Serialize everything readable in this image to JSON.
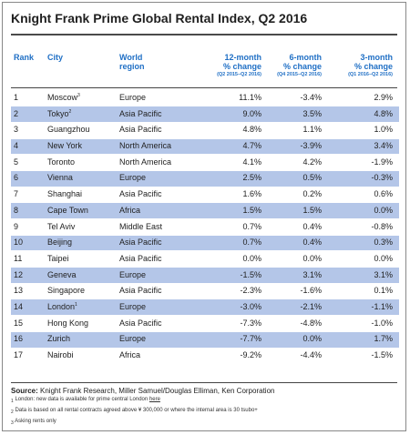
{
  "title": "Knight Frank Prime Global Rental Index, Q2 2016",
  "columns": {
    "rank": "Rank",
    "city": "City",
    "region_line1": "World",
    "region_line2": "region",
    "m12_line1": "12-month",
    "m12_line2": "% change",
    "m12_sub": "(Q2 2015–Q2 2016)",
    "m6_line1": "6-month",
    "m6_line2": "% change",
    "m6_sub": "(Q4 2015–Q2 2016)",
    "m3_line1": "3-month",
    "m3_line2": "% change",
    "m3_sub": "(Q1 2016–Q2 2016)"
  },
  "rows": [
    {
      "rank": "1",
      "city": "Moscow",
      "mark": "3",
      "region": "Europe",
      "m12": "11.1%",
      "m6": "-3.4%",
      "m3": "2.9%"
    },
    {
      "rank": "2",
      "city": "Tokyo",
      "mark": "2",
      "region": "Asia Pacific",
      "m12": "9.0%",
      "m6": "3.5%",
      "m3": "4.8%"
    },
    {
      "rank": "3",
      "city": "Guangzhou",
      "mark": "",
      "region": "Asia Pacific",
      "m12": "4.8%",
      "m6": "1.1%",
      "m3": "1.0%"
    },
    {
      "rank": "4",
      "city": "New York",
      "mark": "",
      "region": "North America",
      "m12": "4.7%",
      "m6": "-3.9%",
      "m3": "3.4%"
    },
    {
      "rank": "5",
      "city": "Toronto",
      "mark": "",
      "region": "North America",
      "m12": "4.1%",
      "m6": "4.2%",
      "m3": "-1.9%"
    },
    {
      "rank": "6",
      "city": "Vienna",
      "mark": "",
      "region": "Europe",
      "m12": "2.5%",
      "m6": "0.5%",
      "m3": "-0.3%"
    },
    {
      "rank": "7",
      "city": "Shanghai",
      "mark": "",
      "region": "Asia Pacific",
      "m12": "1.6%",
      "m6": "0.2%",
      "m3": "0.6%"
    },
    {
      "rank": "8",
      "city": "Cape Town",
      "mark": "",
      "region": "Africa",
      "m12": "1.5%",
      "m6": "1.5%",
      "m3": "0.0%"
    },
    {
      "rank": "9",
      "city": "Tel Aviv",
      "mark": "",
      "region": "Middle East",
      "m12": "0.7%",
      "m6": "0.4%",
      "m3": "-0.8%"
    },
    {
      "rank": "10",
      "city": "Beijing",
      "mark": "",
      "region": "Asia Pacific",
      "m12": "0.7%",
      "m6": "0.4%",
      "m3": "0.3%"
    },
    {
      "rank": "11",
      "city": "Taipei",
      "mark": "",
      "region": "Asia Pacific",
      "m12": "0.0%",
      "m6": "0.0%",
      "m3": "0.0%"
    },
    {
      "rank": "12",
      "city": "Geneva",
      "mark": "",
      "region": "Europe",
      "m12": "-1.5%",
      "m6": "3.1%",
      "m3": "3.1%"
    },
    {
      "rank": "13",
      "city": "Singapore",
      "mark": "",
      "region": "Asia Pacific",
      "m12": "-2.3%",
      "m6": "-1.6%",
      "m3": "0.1%"
    },
    {
      "rank": "14",
      "city": "London",
      "mark": "1",
      "region": "Europe",
      "m12": "-3.0%",
      "m6": "-2.1%",
      "m3": "-1.1%"
    },
    {
      "rank": "15",
      "city": "Hong Kong",
      "mark": "",
      "region": "Asia Pacific",
      "m12": "-7.3%",
      "m6": "-4.8%",
      "m3": "-1.0%"
    },
    {
      "rank": "16",
      "city": "Zurich",
      "mark": "",
      "region": "Europe",
      "m12": "-7.7%",
      "m6": "0.0%",
      "m3": "1.7%"
    },
    {
      "rank": "17",
      "city": "Nairobi",
      "mark": "",
      "region": "Africa",
      "m12": "-9.2%",
      "m6": "-4.4%",
      "m3": "-1.5%"
    }
  ],
  "footer": {
    "source_label": "Source:",
    "source_text": " Knight Frank Research, Miller Samuel/Douglas Elliman, Ken Corporation",
    "note1_mark": "1",
    "note1_text": " London: new data is available for prime central London ",
    "note1_link": "here",
    "note2_mark": "2",
    "note2_text": " Data is based on all rental contracts agreed above ¥ 300,000 or where the internal area is 30 tsubo+",
    "note3_mark": "3",
    "note3_text": " Asking rents only"
  }
}
